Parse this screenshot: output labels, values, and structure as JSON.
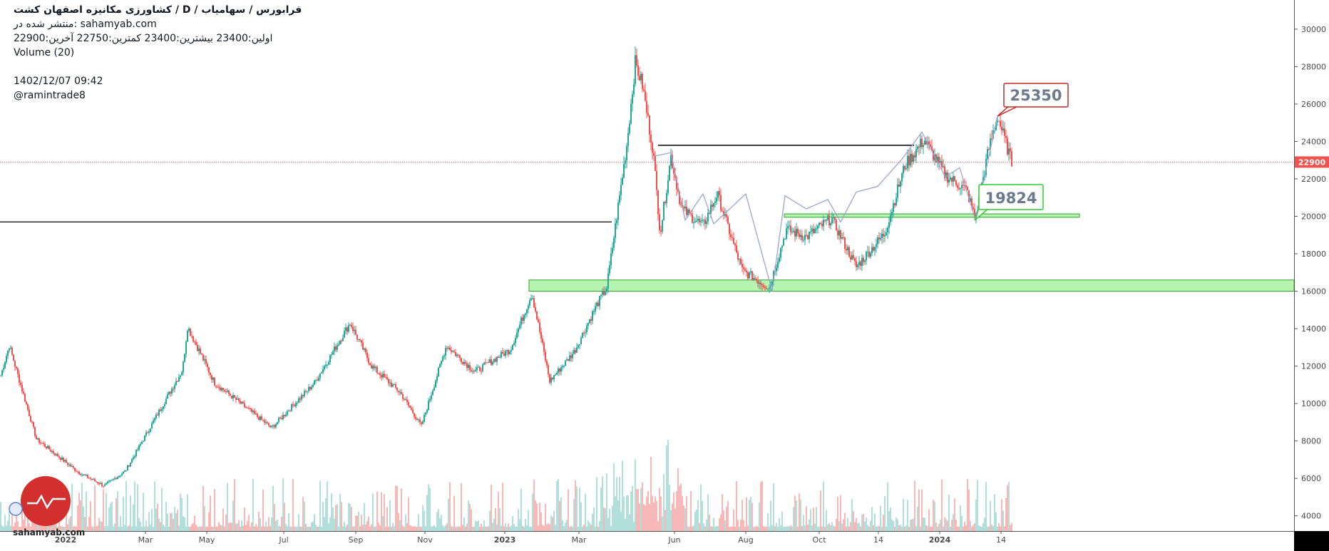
{
  "header": {
    "title": "کشاورزی مکانیزه اصفهان کشت  /  D  /  فرابورس / سهامیاب",
    "published": "منتشر شده در: sahamyab.com",
    "ohlc": "اولین:23400  بیشترین:23400  کمترین:22750  آخرین:22900",
    "volume": "Volume (20)",
    "datetime": "1402/12/07 09:42",
    "author": "@ramintrade8"
  },
  "watermark": "sahamyab.com",
  "colors": {
    "up": "#26a69a",
    "down": "#ef5350",
    "up_volume": "#b2dfdb",
    "down_volume": "#f7b9b7",
    "zone_fill": "#b6f5b0",
    "zone_stroke": "#2e9e2e",
    "price_line": "#e05555",
    "pattern_line": "#9aa6d0",
    "high_label_border": "#c62828",
    "low_label_border": "#2ecc2e",
    "logo": "#d32f2f"
  },
  "chart_data": {
    "type": "candlestick",
    "timeframe": "D",
    "y_ticks": [
      4000,
      6000,
      8000,
      10000,
      12000,
      14000,
      16000,
      18000,
      20000,
      22000,
      24000,
      26000,
      28000,
      30000
    ],
    "x_tick_labels": [
      "2022",
      "Mar",
      "May",
      "Jul",
      "Sep",
      "Nov",
      "2023",
      "Mar",
      "Jun",
      "Aug",
      "Oct",
      "14",
      "2024",
      "14"
    ],
    "ylim": [
      3300,
      31800
    ],
    "last_price": 22900,
    "last_price_label": "22900",
    "price_path": [
      {
        "t": 0,
        "v": 11500
      },
      {
        "t": 12,
        "v": 13100
      },
      {
        "t": 50,
        "v": 8100
      },
      {
        "t": 110,
        "v": 6300
      },
      {
        "t": 145,
        "v": 5600
      },
      {
        "t": 175,
        "v": 6400
      },
      {
        "t": 255,
        "v": 11800
      },
      {
        "t": 262,
        "v": 14100
      },
      {
        "t": 300,
        "v": 11100
      },
      {
        "t": 380,
        "v": 8700
      },
      {
        "t": 440,
        "v": 11100
      },
      {
        "t": 490,
        "v": 14300
      },
      {
        "t": 520,
        "v": 12000
      },
      {
        "t": 560,
        "v": 10600
      },
      {
        "t": 590,
        "v": 8800
      },
      {
        "t": 625,
        "v": 13100
      },
      {
        "t": 665,
        "v": 11700
      },
      {
        "t": 715,
        "v": 12900
      },
      {
        "t": 745,
        "v": 15900
      },
      {
        "t": 770,
        "v": 11200
      },
      {
        "t": 805,
        "v": 12800
      },
      {
        "t": 835,
        "v": 15200
      },
      {
        "t": 850,
        "v": 16200
      },
      {
        "t": 878,
        "v": 23800
      },
      {
        "t": 890,
        "v": 28200
      },
      {
        "t": 900,
        "v": 27000
      },
      {
        "t": 915,
        "v": 23500
      },
      {
        "t": 925,
        "v": 19100
      },
      {
        "t": 940,
        "v": 23200
      },
      {
        "t": 955,
        "v": 20400
      },
      {
        "t": 985,
        "v": 19500
      },
      {
        "t": 1005,
        "v": 21200
      },
      {
        "t": 1040,
        "v": 17100
      },
      {
        "t": 1078,
        "v": 16200
      },
      {
        "t": 1102,
        "v": 19300
      },
      {
        "t": 1130,
        "v": 18900
      },
      {
        "t": 1165,
        "v": 19900
      },
      {
        "t": 1200,
        "v": 17300
      },
      {
        "t": 1240,
        "v": 19100
      },
      {
        "t": 1268,
        "v": 22700
      },
      {
        "t": 1295,
        "v": 24100
      },
      {
        "t": 1325,
        "v": 22200
      },
      {
        "t": 1355,
        "v": 21400
      },
      {
        "t": 1367,
        "v": 19824
      },
      {
        "t": 1385,
        "v": 23500
      },
      {
        "t": 1398,
        "v": 25350
      },
      {
        "t": 1418,
        "v": 22900
      }
    ],
    "support_zone": [
      16000,
      16600
    ],
    "range_zone": [
      19950,
      20130
    ],
    "resistance_line": 23800,
    "old_resistance_line": 19700,
    "annotations": [
      {
        "text": "25350",
        "value": 25350
      },
      {
        "text": "19824",
        "value": 19824
      }
    ]
  }
}
